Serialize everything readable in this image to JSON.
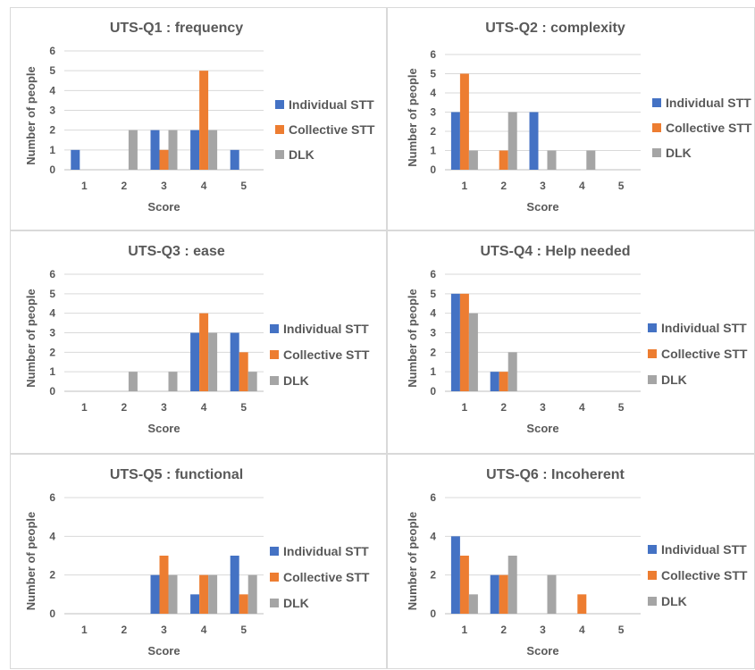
{
  "colors": {
    "individual": "#4472c4",
    "collective": "#ed7d31",
    "dlk": "#a5a5a5"
  },
  "chart_data": [
    {
      "type": "bar",
      "title": "UTS-Q1 : frequency",
      "xlabel": "Score",
      "ylabel": "Number of people",
      "categories": [
        "1",
        "2",
        "3",
        "4",
        "5"
      ],
      "yticks": [
        0,
        1,
        2,
        3,
        4,
        5,
        6
      ],
      "ylim": [
        0,
        6
      ],
      "grid": true,
      "legend": "right",
      "series": [
        {
          "name": "Individual STT",
          "values": [
            1,
            0,
            2,
            2,
            1
          ]
        },
        {
          "name": "Collective STT",
          "values": [
            0,
            0,
            1,
            5,
            0
          ]
        },
        {
          "name": "DLK",
          "values": [
            0,
            2,
            2,
            2,
            0
          ]
        }
      ]
    },
    {
      "type": "bar",
      "title": "UTS-Q2 : complexity",
      "xlabel": "Score",
      "ylabel": "Number of people",
      "categories": [
        "1",
        "2",
        "3",
        "4",
        "5"
      ],
      "yticks": [
        0,
        1,
        2,
        3,
        4,
        5,
        6
      ],
      "ylim": [
        0,
        6
      ],
      "grid": true,
      "legend": "right",
      "series": [
        {
          "name": "Individual STT",
          "values": [
            3,
            0,
            3,
            0,
            0
          ]
        },
        {
          "name": "Collective STT",
          "values": [
            5,
            1,
            0,
            0,
            0
          ]
        },
        {
          "name": "DLK",
          "values": [
            1,
            3,
            1,
            1,
            0
          ]
        }
      ]
    },
    {
      "type": "bar",
      "title": "UTS-Q3 : ease",
      "xlabel": "Score",
      "ylabel": "Number of people",
      "categories": [
        "1",
        "2",
        "3",
        "4",
        "5"
      ],
      "yticks": [
        0,
        1,
        2,
        3,
        4,
        5,
        6
      ],
      "ylim": [
        0,
        6
      ],
      "grid": true,
      "legend": "right",
      "series": [
        {
          "name": "Individual STT",
          "values": [
            0,
            0,
            0,
            3,
            3
          ]
        },
        {
          "name": "Collective STT",
          "values": [
            0,
            0,
            0,
            4,
            2
          ]
        },
        {
          "name": "DLK",
          "values": [
            0,
            1,
            1,
            3,
            1
          ]
        }
      ]
    },
    {
      "type": "bar",
      "title": "UTS-Q4 : Help needed",
      "xlabel": "Score",
      "ylabel": "Number of people",
      "categories": [
        "1",
        "2",
        "3",
        "4",
        "5"
      ],
      "yticks": [
        0,
        1,
        2,
        3,
        4,
        5,
        6
      ],
      "ylim": [
        0,
        6
      ],
      "grid": true,
      "legend": "right",
      "series": [
        {
          "name": "Individual STT",
          "values": [
            5,
            1,
            0,
            0,
            0
          ]
        },
        {
          "name": "Collective STT",
          "values": [
            5,
            1,
            0,
            0,
            0
          ]
        },
        {
          "name": "DLK",
          "values": [
            4,
            2,
            0,
            0,
            0
          ]
        }
      ]
    },
    {
      "type": "bar",
      "title": "UTS-Q5 : functional",
      "xlabel": "Score",
      "ylabel": "Number of people",
      "categories": [
        "1",
        "2",
        "3",
        "4",
        "5"
      ],
      "yticks": [
        0,
        2,
        4,
        6
      ],
      "ylim": [
        0,
        6
      ],
      "grid": true,
      "legend": "right",
      "series": [
        {
          "name": "Individual STT",
          "values": [
            0,
            0,
            2,
            1,
            3
          ]
        },
        {
          "name": "Collective STT",
          "values": [
            0,
            0,
            3,
            2,
            1
          ]
        },
        {
          "name": "DLK",
          "values": [
            0,
            0,
            2,
            2,
            2
          ]
        }
      ]
    },
    {
      "type": "bar",
      "title": "UTS-Q6 : Incoherent",
      "xlabel": "Score",
      "ylabel": "Number of people",
      "categories": [
        "1",
        "2",
        "3",
        "4",
        "5"
      ],
      "yticks": [
        0,
        2,
        4,
        6
      ],
      "ylim": [
        0,
        6
      ],
      "grid": true,
      "legend": "right",
      "series": [
        {
          "name": "Individual STT",
          "values": [
            4,
            2,
            0,
            0,
            0
          ]
        },
        {
          "name": "Collective STT",
          "values": [
            3,
            2,
            0,
            1,
            0
          ]
        },
        {
          "name": "DLK",
          "values": [
            1,
            3,
            2,
            0,
            0
          ]
        }
      ]
    }
  ]
}
